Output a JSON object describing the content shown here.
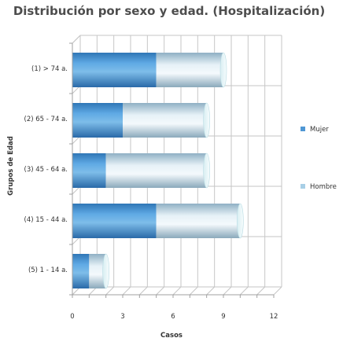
{
  "chart_data": {
    "type": "bar",
    "orientation": "horizontal",
    "stacked": true,
    "three_d": true,
    "title": "Distribución por sexo y edad. (Hospitalización)",
    "xlabel": "Casos",
    "ylabel": "Grupos de Edad",
    "categories": [
      "(1) > 74 a.",
      "(2) 65 - 74 a.",
      "(3) 45 - 64 a.",
      "(4) 15 - 44 a.",
      "(5) 1 - 14 a."
    ],
    "series": [
      {
        "name": "Mujer",
        "values": [
          5,
          3,
          2,
          5,
          1
        ],
        "color": "#4f97d4"
      },
      {
        "name": "Hombre",
        "values": [
          4,
          5,
          6,
          5,
          1
        ],
        "color": "#a8cfe6"
      }
    ],
    "xlim": [
      0,
      12
    ],
    "xticks": [
      0,
      3,
      6,
      9,
      12
    ],
    "grid": true,
    "legend_position": "right"
  }
}
